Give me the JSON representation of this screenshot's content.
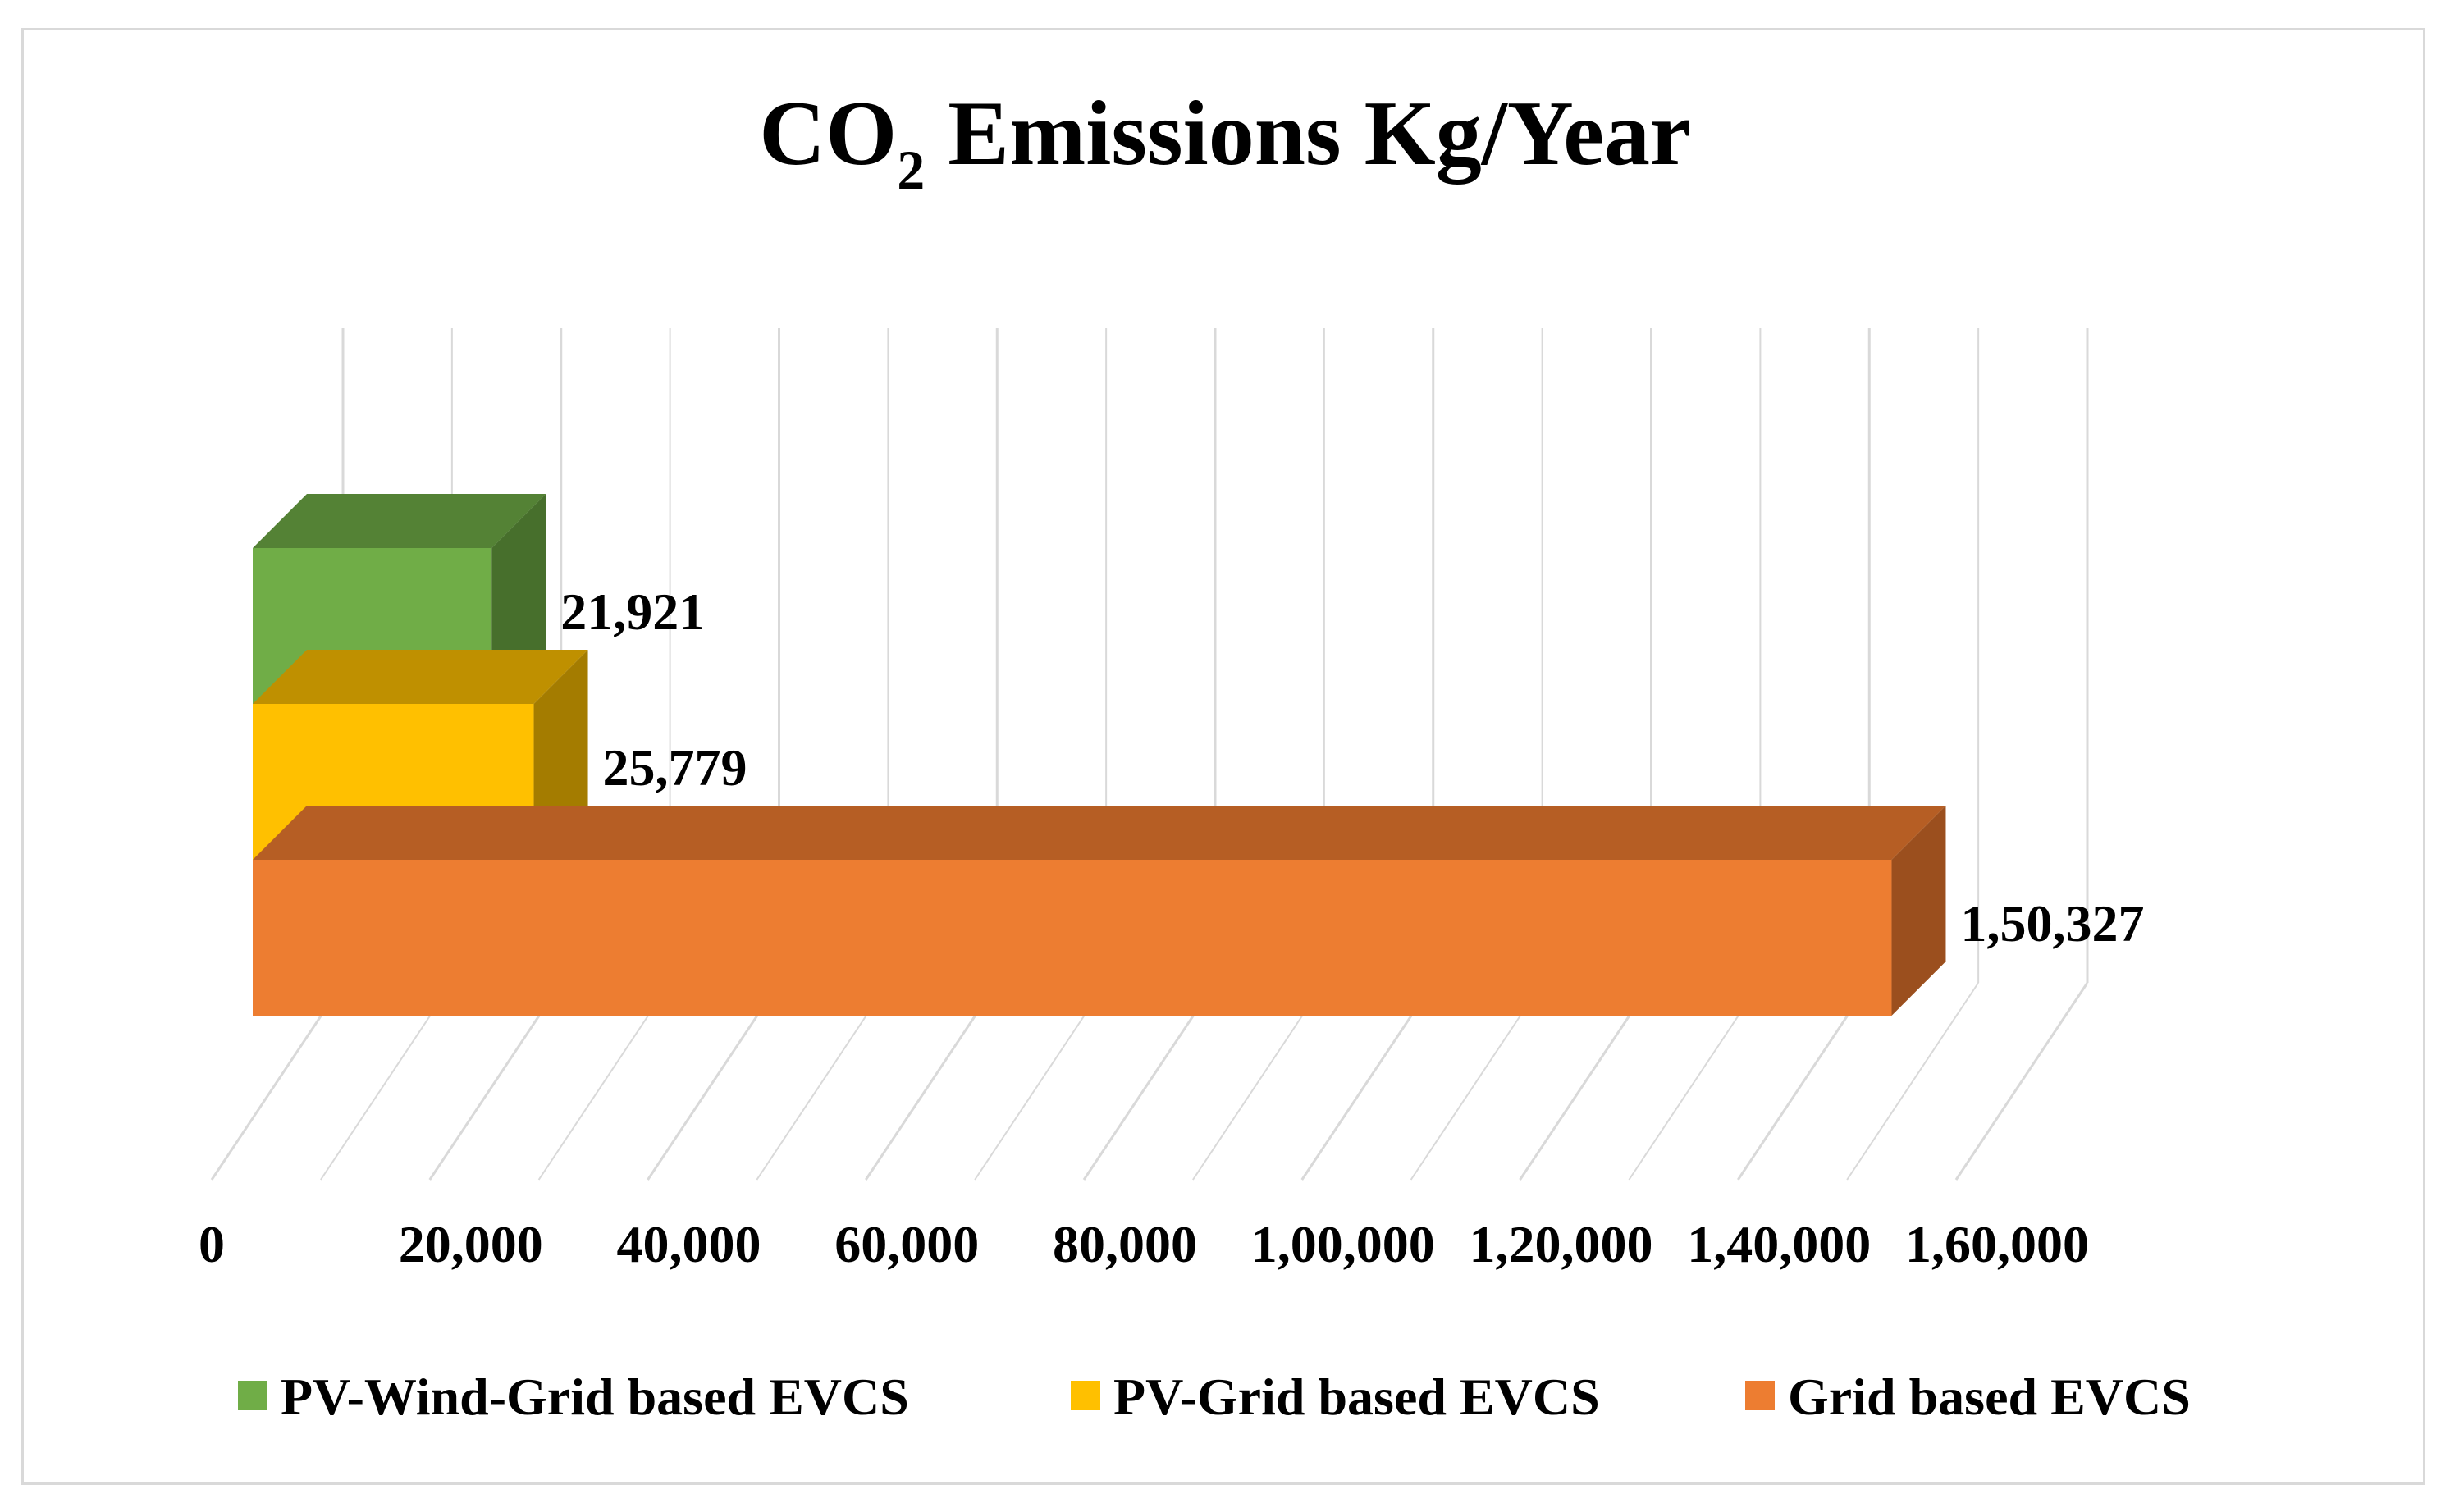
{
  "chart_data": {
    "type": "bar",
    "orientation": "horizontal",
    "style": "3d",
    "title": {
      "main": "CO",
      "subscript": "2",
      "rest": " Emissions Kg/Year"
    },
    "xlim": [
      0,
      160000
    ],
    "x_ticks": [
      0,
      20000,
      40000,
      60000,
      80000,
      100000,
      120000,
      140000,
      160000
    ],
    "x_tick_labels": [
      "0",
      "20,000",
      "40,000",
      "60,000",
      "80,000",
      "1,00,000",
      "1,20,000",
      "1,40,000",
      "1,60,000"
    ],
    "grid": true,
    "legend_position": "bottom",
    "series": [
      {
        "name": "PV-Wind-Grid based EVCS",
        "value": 21921,
        "label": "21,921",
        "color": "#70ad47",
        "top_color": "#548235",
        "side_color": "#476f2c"
      },
      {
        "name": "PV-Grid based EVCS",
        "value": 25779,
        "label": "25,779",
        "color": "#ffc000",
        "top_color": "#bf9000",
        "side_color": "#a47c00"
      },
      {
        "name": "Grid based EVCS",
        "value": 150327,
        "label": "1,50,327",
        "color": "#ed7d31",
        "top_color": "#b65e24",
        "side_color": "#9b4f1e"
      }
    ],
    "gridline_color": "#d9d9d9"
  }
}
